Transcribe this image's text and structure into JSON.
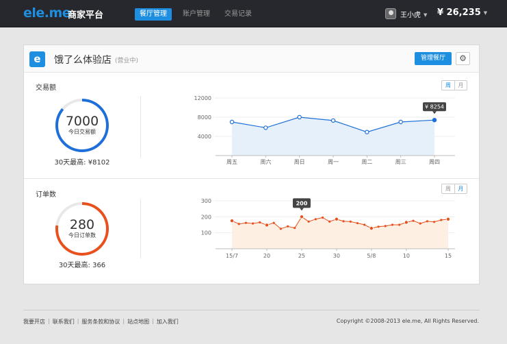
{
  "header": {
    "logo": "ele.me",
    "brand": "商家平台",
    "tabs": [
      {
        "label": "餐厅管理",
        "active": true
      },
      {
        "label": "账户管理",
        "active": false
      },
      {
        "label": "交易记录",
        "active": false
      }
    ],
    "user": "王小虎",
    "balance": "¥ 26,235"
  },
  "store": {
    "logo_letter": "e",
    "name": "饿了么体验店",
    "status": "(营业中)",
    "manage_label": "管理餐厅",
    "gear_icon": "gear-icon"
  },
  "transactions": {
    "title": "交易额",
    "today_value": "7000",
    "today_label": "今日交易额",
    "max_label": "30天最高: ¥8102",
    "toggle": [
      "周",
      "月"
    ],
    "ring_fraction": 0.86,
    "ring_color": "#1e6fd9"
  },
  "orders": {
    "title": "订单数",
    "today_value": "280",
    "today_label": "今日订单数",
    "max_label": "30天最高: 366",
    "toggle": [
      "周",
      "月"
    ],
    "ring_fraction": 0.77,
    "ring_color": "#e8501e"
  },
  "chart_data": [
    {
      "type": "area",
      "categories": [
        "周五",
        "周六",
        "周日",
        "周一",
        "周二",
        "周三",
        "周四"
      ],
      "values": [
        7000,
        5800,
        8000,
        7300,
        4900,
        7000,
        7400
      ],
      "yticks": [
        4000,
        8000,
        12000
      ],
      "ylim": [
        0,
        12000
      ],
      "tooltip": "¥ 8254",
      "color": "#1e6fd9"
    },
    {
      "type": "area",
      "xticks": [
        "15/7",
        "20",
        "25",
        "30",
        "5/8",
        "10",
        "15"
      ],
      "values": [
        175,
        155,
        162,
        158,
        165,
        148,
        162,
        125,
        140,
        130,
        200,
        170,
        185,
        195,
        170,
        185,
        172,
        170,
        160,
        150,
        128,
        138,
        142,
        150,
        150,
        165,
        175,
        158,
        172,
        168,
        180,
        185
      ],
      "yticks": [
        100,
        200,
        300
      ],
      "ylim": [
        0,
        300
      ],
      "tooltip": "200",
      "color": "#e8501e"
    }
  ],
  "footer": {
    "links": [
      "我要开店",
      "联系我们",
      "服务条款和协议",
      "站点地图",
      "加入我们"
    ],
    "copyright": "Copyright ©2008-2013 ele.me, All Rights Reserved."
  }
}
